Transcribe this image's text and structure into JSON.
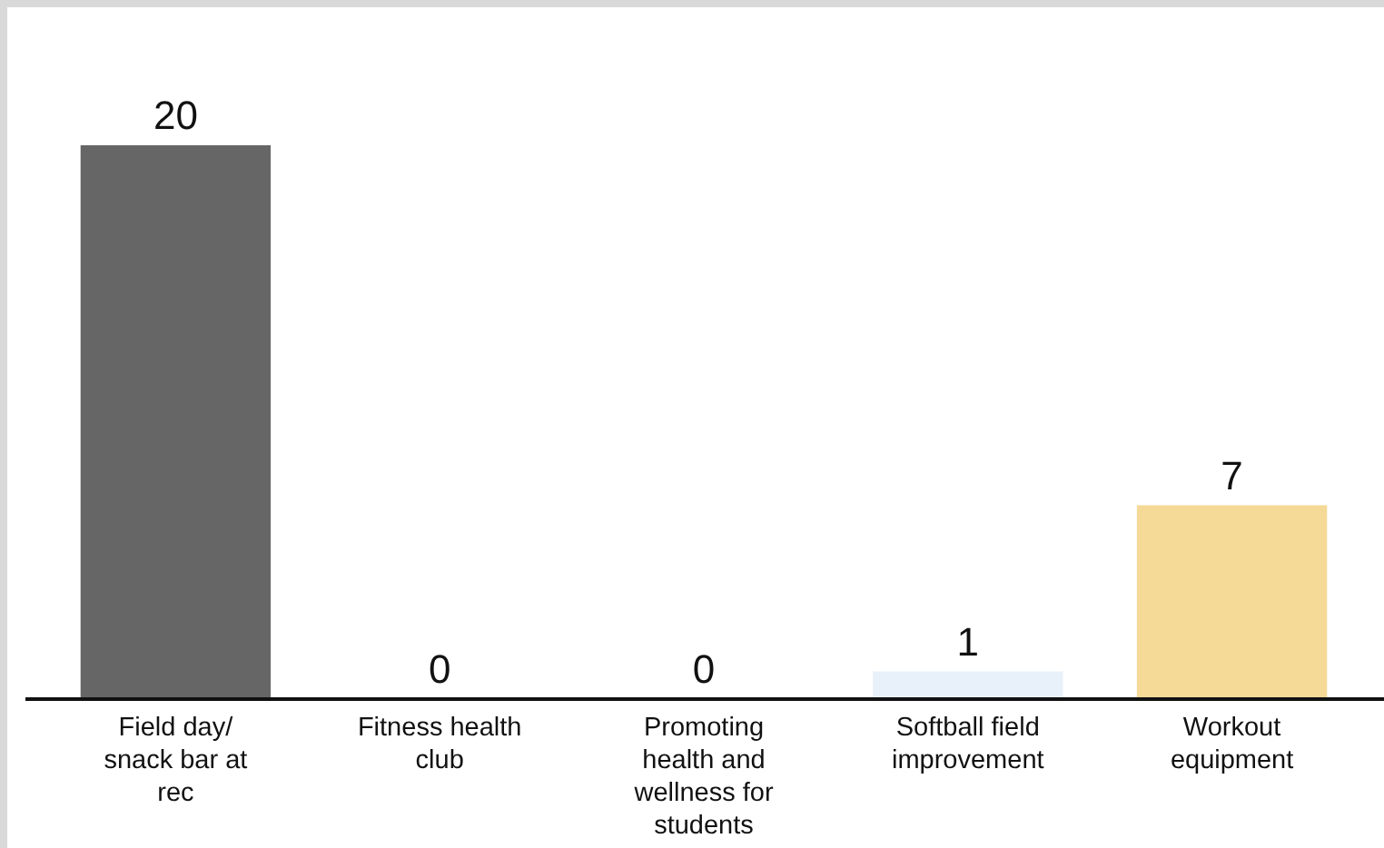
{
  "chart_data": {
    "type": "bar",
    "categories": [
      "Field day/ snack bar at rec",
      "Fitness health club",
      "Promoting health and wellness for students",
      "Softball field improvement",
      "Workout equipment"
    ],
    "values": [
      20,
      0,
      0,
      1,
      7
    ],
    "colors": [
      "#666666",
      "#666666",
      "#666666",
      "#e8f1fa",
      "#f5d996"
    ],
    "data_labels": true
  }
}
